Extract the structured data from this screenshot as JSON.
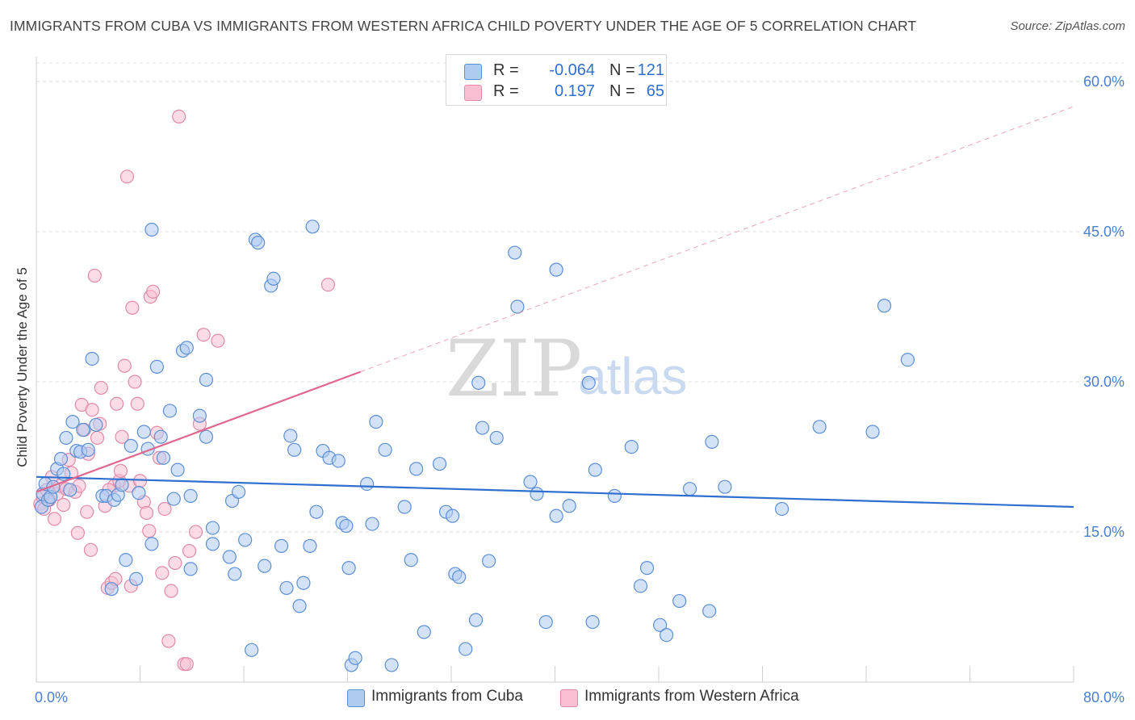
{
  "title": "IMMIGRANTS FROM CUBA VS IMMIGRANTS FROM WESTERN AFRICA CHILD POVERTY UNDER THE AGE OF 5 CORRELATION CHART",
  "source": "Source: ZipAtlas.com",
  "watermark": {
    "zip": "ZIP",
    "atlas": "atlas"
  },
  "colors": {
    "blue_fill": "#aecbf0",
    "blue_stroke": "#5b8fd6",
    "blue_line": "#2f6fcf",
    "pink_fill": "#f7bfd1",
    "pink_stroke": "#e28aa8",
    "pink_line": "#e0678f",
    "grid": "#dcdcdc",
    "axis_label": "#4a7fd1"
  },
  "legend_top": {
    "rows": [
      {
        "r_label": "R =",
        "r_value": "-0.064",
        "n_label": "N =",
        "n_value": "121"
      },
      {
        "r_label": "R =",
        "r_value": "0.197",
        "n_label": "N =",
        "n_value": "65"
      }
    ]
  },
  "legend_bottom": {
    "items": [
      {
        "label": "Immigrants from Cuba"
      },
      {
        "label": "Immigrants from Western Africa"
      }
    ]
  },
  "chart_data": {
    "type": "scatter",
    "title": "IMMIGRANTS FROM CUBA VS IMMIGRANTS FROM WESTERN AFRICA CHILD POVERTY UNDER THE AGE OF 5 CORRELATION CHART",
    "xlabel": "",
    "ylabel": "Child Poverty Under the Age of 5",
    "xlim": [
      0,
      80
    ],
    "ylim": [
      0,
      62.5
    ],
    "x_tick_labels": [
      {
        "value": 0,
        "label": "0.0%"
      },
      {
        "value": 80,
        "label": "80.0%"
      }
    ],
    "y_ticks": [
      {
        "value": 15,
        "label": "15.0%"
      },
      {
        "value": 30,
        "label": "30.0%"
      },
      {
        "value": 45,
        "label": "45.0%"
      },
      {
        "value": 60,
        "label": "60.0%"
      }
    ],
    "series": [
      {
        "name": "Immigrants from Cuba",
        "color": "blue",
        "R": -0.064,
        "N": 121,
        "trend": {
          "x0": 0,
          "y0": 20.5,
          "x1": 80,
          "y1": 17.5,
          "dashed_to": null
        },
        "points": [
          [
            0.4,
            17.5
          ],
          [
            0.5,
            18.8
          ],
          [
            0.7,
            19.8
          ],
          [
            0.9,
            18.2
          ],
          [
            1.1,
            18.5
          ],
          [
            1.3,
            19.5
          ],
          [
            1.6,
            21.3
          ],
          [
            1.9,
            22.3
          ],
          [
            2.1,
            20.8
          ],
          [
            2.3,
            24.4
          ],
          [
            2.6,
            19.2
          ],
          [
            2.8,
            26.0
          ],
          [
            3.1,
            23.1
          ],
          [
            3.4,
            23.0
          ],
          [
            3.6,
            25.2
          ],
          [
            4.0,
            23.2
          ],
          [
            4.3,
            32.3
          ],
          [
            4.6,
            25.7
          ],
          [
            5.1,
            18.6
          ],
          [
            5.4,
            18.6
          ],
          [
            5.8,
            9.3
          ],
          [
            6.0,
            18.2
          ],
          [
            6.3,
            18.7
          ],
          [
            6.6,
            19.7
          ],
          [
            6.9,
            12.2
          ],
          [
            7.3,
            23.6
          ],
          [
            7.7,
            10.3
          ],
          [
            7.9,
            18.9
          ],
          [
            8.3,
            25.0
          ],
          [
            8.6,
            23.3
          ],
          [
            8.9,
            45.2
          ],
          [
            8.9,
            13.8
          ],
          [
            9.3,
            31.5
          ],
          [
            9.6,
            24.5
          ],
          [
            9.8,
            22.4
          ],
          [
            10.3,
            27.1
          ],
          [
            10.6,
            18.3
          ],
          [
            10.9,
            21.2
          ],
          [
            11.3,
            33.1
          ],
          [
            11.6,
            33.4
          ],
          [
            11.9,
            18.6
          ],
          [
            11.9,
            11.3
          ],
          [
            12.6,
            26.6
          ],
          [
            13.1,
            24.5
          ],
          [
            13.1,
            30.2
          ],
          [
            13.6,
            15.4
          ],
          [
            13.6,
            13.8
          ],
          [
            14.9,
            12.5
          ],
          [
            15.1,
            18.1
          ],
          [
            15.3,
            10.8
          ],
          [
            15.6,
            19.0
          ],
          [
            16.1,
            14.2
          ],
          [
            16.6,
            3.2
          ],
          [
            16.9,
            44.2
          ],
          [
            17.1,
            43.9
          ],
          [
            17.6,
            11.6
          ],
          [
            18.1,
            39.6
          ],
          [
            18.3,
            40.3
          ],
          [
            18.9,
            13.6
          ],
          [
            19.6,
            24.6
          ],
          [
            19.3,
            9.4
          ],
          [
            19.9,
            23.2
          ],
          [
            20.3,
            7.6
          ],
          [
            20.6,
            9.9
          ],
          [
            21.1,
            13.6
          ],
          [
            21.3,
            45.5
          ],
          [
            21.6,
            17.0
          ],
          [
            22.1,
            23.1
          ],
          [
            22.6,
            22.4
          ],
          [
            23.3,
            22.1
          ],
          [
            23.6,
            15.9
          ],
          [
            23.9,
            15.6
          ],
          [
            24.1,
            11.4
          ],
          [
            24.3,
            1.7
          ],
          [
            24.6,
            2.4
          ],
          [
            25.5,
            19.8
          ],
          [
            25.9,
            15.8
          ],
          [
            26.2,
            26.0
          ],
          [
            26.9,
            23.2
          ],
          [
            27.4,
            1.7
          ],
          [
            28.4,
            17.5
          ],
          [
            28.9,
            12.2
          ],
          [
            29.3,
            21.3
          ],
          [
            29.9,
            5.0
          ],
          [
            31.1,
            21.8
          ],
          [
            31.6,
            17.0
          ],
          [
            32.1,
            16.6
          ],
          [
            32.3,
            10.8
          ],
          [
            32.6,
            10.5
          ],
          [
            33.1,
            3.3
          ],
          [
            33.9,
            6.2
          ],
          [
            34.1,
            29.9
          ],
          [
            34.4,
            25.4
          ],
          [
            34.9,
            12.1
          ],
          [
            35.5,
            24.4
          ],
          [
            36.9,
            42.9
          ],
          [
            37.1,
            37.5
          ],
          [
            38.1,
            20.0
          ],
          [
            38.6,
            18.8
          ],
          [
            39.3,
            6.0
          ],
          [
            40.1,
            41.2
          ],
          [
            40.1,
            16.6
          ],
          [
            41.1,
            17.6
          ],
          [
            42.6,
            29.9
          ],
          [
            42.9,
            6.0
          ],
          [
            43.1,
            21.2
          ],
          [
            44.6,
            18.6
          ],
          [
            45.9,
            23.5
          ],
          [
            46.6,
            9.6
          ],
          [
            47.1,
            11.4
          ],
          [
            48.1,
            5.7
          ],
          [
            48.6,
            4.7
          ],
          [
            49.6,
            8.1
          ],
          [
            50.4,
            19.3
          ],
          [
            51.9,
            7.1
          ],
          [
            52.1,
            24.0
          ],
          [
            53.1,
            19.5
          ],
          [
            57.5,
            17.3
          ],
          [
            60.4,
            25.5
          ],
          [
            64.5,
            25.0
          ],
          [
            65.4,
            37.6
          ],
          [
            67.2,
            32.2
          ]
        ]
      },
      {
        "name": "Immigrants from Western Africa",
        "color": "pink",
        "R": 0.197,
        "N": 65,
        "trend": {
          "x0": 0,
          "y0": 19.0,
          "x1": 25.0,
          "y1": 31.0,
          "dashed_to": {
            "x": 80,
            "y": 57.5
          }
        },
        "points": [
          [
            0.3,
            17.8
          ],
          [
            0.5,
            18.5
          ],
          [
            0.6,
            17.3
          ],
          [
            0.8,
            19.2
          ],
          [
            1.0,
            18.2
          ],
          [
            1.2,
            20.5
          ],
          [
            1.4,
            16.3
          ],
          [
            1.6,
            18.8
          ],
          [
            1.8,
            19.6
          ],
          [
            2.1,
            17.7
          ],
          [
            2.3,
            19.3
          ],
          [
            2.5,
            22.2
          ],
          [
            2.7,
            20.9
          ],
          [
            3.0,
            19.0
          ],
          [
            3.2,
            14.9
          ],
          [
            3.3,
            19.6
          ],
          [
            3.5,
            27.7
          ],
          [
            3.7,
            25.2
          ],
          [
            4.0,
            22.8
          ],
          [
            4.2,
            13.2
          ],
          [
            4.3,
            27.2
          ],
          [
            4.5,
            40.6
          ],
          [
            4.7,
            24.4
          ],
          [
            4.9,
            25.8
          ],
          [
            5.0,
            29.4
          ],
          [
            5.3,
            17.6
          ],
          [
            5.5,
            9.4
          ],
          [
            5.8,
            9.9
          ],
          [
            6.0,
            19.6
          ],
          [
            6.2,
            27.8
          ],
          [
            6.4,
            20.1
          ],
          [
            6.5,
            21.1
          ],
          [
            6.6,
            24.5
          ],
          [
            6.8,
            31.6
          ],
          [
            7.0,
            50.5
          ],
          [
            7.2,
            19.6
          ],
          [
            7.4,
            37.4
          ],
          [
            7.6,
            30.0
          ],
          [
            7.8,
            27.8
          ],
          [
            8.0,
            20.1
          ],
          [
            8.3,
            18.0
          ],
          [
            8.5,
            16.9
          ],
          [
            8.8,
            38.5
          ],
          [
            9.0,
            39.0
          ],
          [
            9.3,
            24.9
          ],
          [
            9.5,
            22.4
          ],
          [
            9.7,
            10.9
          ],
          [
            9.9,
            17.3
          ],
          [
            10.2,
            4.1
          ],
          [
            10.4,
            9.1
          ],
          [
            10.7,
            11.9
          ],
          [
            11.0,
            56.5
          ],
          [
            11.4,
            1.8
          ],
          [
            11.6,
            1.8
          ],
          [
            11.8,
            13.1
          ],
          [
            12.3,
            15.0
          ],
          [
            12.6,
            25.8
          ],
          [
            12.9,
            34.7
          ],
          [
            14.0,
            34.1
          ],
          [
            22.5,
            39.7
          ],
          [
            5.6,
            19.2
          ],
          [
            6.1,
            10.3
          ],
          [
            7.3,
            9.6
          ],
          [
            3.9,
            17.0
          ],
          [
            8.7,
            15.1
          ]
        ]
      }
    ]
  }
}
